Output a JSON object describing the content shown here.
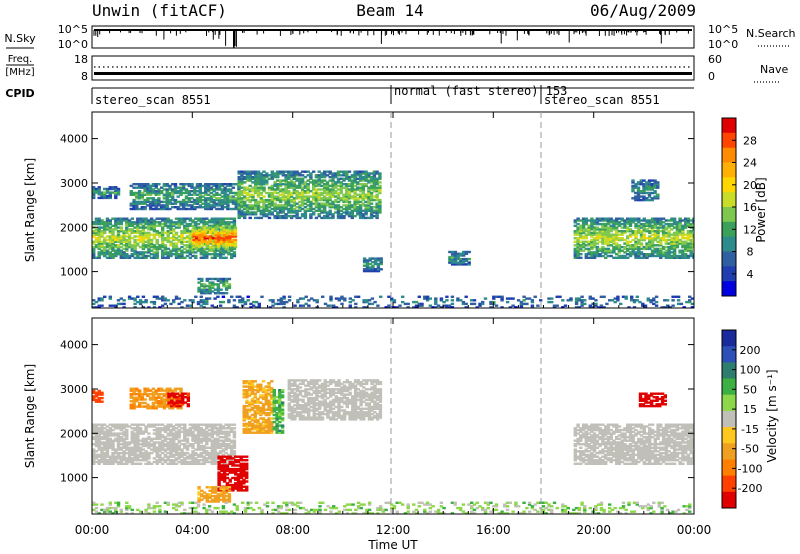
{
  "header": {
    "station": "Unwin (fitACF)",
    "beam": "Beam 14",
    "date": "06/Aug/2009"
  },
  "strips": {
    "nsky_label": "N.Sky",
    "nsky_ticks": [
      "10^5",
      "10^0"
    ],
    "nsearch_label": "N.Search",
    "nsearch_ticks": [
      "10^5",
      "10^0"
    ],
    "freq_label_1": "Freq.",
    "freq_label_2": "[MHz]",
    "freq_ticks": [
      "18",
      "8"
    ],
    "nave_label": "Nave",
    "nave_ticks": [
      "60",
      "0"
    ],
    "cpid_label": "CPID",
    "cpid_segments": [
      {
        "label": "stereo_scan 8551",
        "start": 0,
        "end": 12
      },
      {
        "label": "normal (fast stereo) 153",
        "start": 12,
        "end": 18
      },
      {
        "label": "stereo_scan 8551",
        "start": 18,
        "end": 24
      }
    ]
  },
  "axes": {
    "ylabel": "Slant Range [km]",
    "y_ticks": [
      "4000",
      "3000",
      "2000",
      "1000"
    ],
    "x_ticks": [
      "00:00",
      "04:00",
      "08:00",
      "12:00",
      "16:00",
      "20:00",
      "00:00"
    ],
    "xlabel": "Time UT"
  },
  "colorbars": {
    "power": {
      "label": "Power [dB]",
      "ticks": [
        "28",
        "24",
        "20",
        "16",
        "12",
        "8",
        "4"
      ],
      "colors": [
        "#e00000",
        "#ff4500",
        "#ff8c00",
        "#ffb000",
        "#ffd700",
        "#c8dc28",
        "#7ec850",
        "#3aa05a",
        "#2e8b8b",
        "#2f5fa0",
        "#1f3fb0",
        "#0000e0"
      ]
    },
    "velocity": {
      "label": "Velocity [m s⁻¹]",
      "ticks": [
        "200",
        "100",
        "50",
        "15",
        "-15",
        "-50",
        "-100",
        "-200"
      ],
      "colors": [
        "#1a2a9a",
        "#2d4fb8",
        "#2e7d6e",
        "#3cb043",
        "#8dd84a",
        "#c0c0b8",
        "#ffc81e",
        "#f0a020",
        "#ff8000",
        "#ff4000",
        "#e00000"
      ]
    }
  },
  "chart_data": [
    {
      "type": "heatmap",
      "title": "Power",
      "ylabel": "Slant Range [km]",
      "xlabel": "Time UT",
      "xlim": [
        0,
        24
      ],
      "ylim": [
        180,
        4600
      ],
      "colorbar_label": "Power [dB]",
      "colorbar_ticks": [
        4,
        8,
        12,
        16,
        20,
        24,
        28
      ],
      "regions": [
        {
          "t0": 0.0,
          "t1": 5.7,
          "r0": 1300,
          "r1": 2200,
          "power": 13
        },
        {
          "t0": 4.0,
          "t1": 5.7,
          "r0": 1500,
          "r1": 2000,
          "power": 22
        },
        {
          "t0": 0.0,
          "t1": 1.0,
          "r0": 2650,
          "r1": 2900,
          "power": 8
        },
        {
          "t0": 1.5,
          "t1": 5.8,
          "r0": 2400,
          "r1": 3000,
          "power": 9
        },
        {
          "t0": 5.8,
          "t1": 11.5,
          "r0": 2200,
          "r1": 3250,
          "power": 12
        },
        {
          "t0": 4.2,
          "t1": 5.5,
          "r0": 500,
          "r1": 850,
          "power": 10
        },
        {
          "t0": 10.8,
          "t1": 11.5,
          "r0": 1000,
          "r1": 1300,
          "power": 8
        },
        {
          "t0": 14.2,
          "t1": 15.0,
          "r0": 1150,
          "r1": 1450,
          "power": 8
        },
        {
          "t0": 19.2,
          "t1": 24.0,
          "r0": 1300,
          "r1": 2200,
          "power": 13
        },
        {
          "t0": 21.5,
          "t1": 22.5,
          "r0": 2600,
          "r1": 3050,
          "power": 8
        },
        {
          "t0": 0.0,
          "t1": 24.0,
          "r0": 180,
          "r1": 450,
          "power": 6
        }
      ]
    },
    {
      "type": "heatmap",
      "title": "Velocity",
      "ylabel": "Slant Range [km]",
      "xlabel": "Time UT",
      "xlim": [
        0,
        24
      ],
      "ylim": [
        180,
        4600
      ],
      "colorbar_label": "Velocity [m s⁻¹]",
      "colorbar_ticks": [
        -200,
        -100,
        -50,
        -15,
        15,
        50,
        100,
        200
      ],
      "regions": [
        {
          "t0": 0.0,
          "t1": 5.7,
          "r0": 1300,
          "r1": 2200,
          "velocity": 0
        },
        {
          "t0": 0.0,
          "t1": 0.4,
          "r0": 2700,
          "r1": 2950,
          "velocity": -150
        },
        {
          "t0": 1.5,
          "t1": 3.5,
          "r0": 2550,
          "r1": 3000,
          "velocity": -70
        },
        {
          "t0": 3.0,
          "t1": 3.8,
          "r0": 2600,
          "r1": 2900,
          "velocity": -180
        },
        {
          "t0": 5.0,
          "t1": 6.2,
          "r0": 700,
          "r1": 1500,
          "velocity": -200
        },
        {
          "t0": 6.0,
          "t1": 7.2,
          "r0": 2000,
          "r1": 3200,
          "velocity": -60
        },
        {
          "t0": 7.2,
          "t1": 7.6,
          "r0": 2000,
          "r1": 3000,
          "velocity": 40
        },
        {
          "t0": 7.8,
          "t1": 11.5,
          "r0": 2300,
          "r1": 3200,
          "velocity": 0
        },
        {
          "t0": 4.2,
          "t1": 5.5,
          "r0": 450,
          "r1": 800,
          "velocity": -60
        },
        {
          "t0": 19.2,
          "t1": 24.0,
          "r0": 1300,
          "r1": 2200,
          "velocity": 0
        },
        {
          "t0": 21.8,
          "t1": 22.8,
          "r0": 2600,
          "r1": 2900,
          "velocity": -200
        },
        {
          "t0": 0.0,
          "t1": 24.0,
          "r0": 180,
          "r1": 450,
          "velocity": 20
        }
      ]
    }
  ]
}
